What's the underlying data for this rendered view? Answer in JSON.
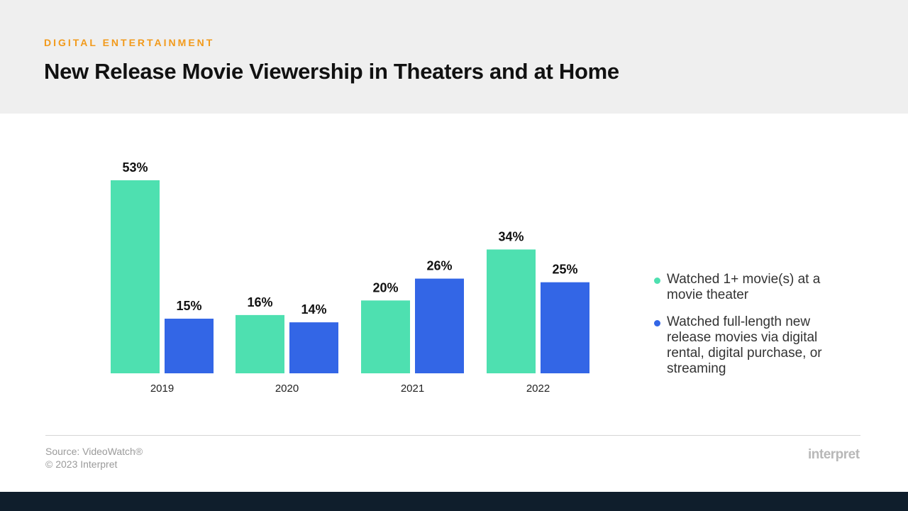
{
  "header": {
    "kicker": "DIGITAL ENTERTAINMENT",
    "title": "New Release Movie Viewership in Theaters and at Home"
  },
  "chart_data": {
    "type": "bar",
    "categories": [
      "2019",
      "2020",
      "2021",
      "2022"
    ],
    "series": [
      {
        "name": "Watched 1+ movie(s) at a movie theater",
        "values": [
          53,
          16,
          20,
          34
        ],
        "labels": [
          "53%",
          "16%",
          "20%",
          "34%"
        ],
        "color": "#4ee0b0"
      },
      {
        "name": "Watched full-length new release movies via digital rental, digital purchase, or streaming",
        "values": [
          15,
          14,
          26,
          25
        ],
        "labels": [
          "15%",
          "14%",
          "26%",
          "25%"
        ],
        "color": "#3366e6"
      }
    ],
    "ylim": [
      0,
      60
    ],
    "grid": false,
    "legend": "right"
  },
  "legend": {
    "items": [
      {
        "text": "Watched 1+ movie(s) at a movie theater",
        "color": "#4ee0b0"
      },
      {
        "text": "Watched full-length new release movies via digital rental, digital purchase, or streaming",
        "color": "#3366e6"
      }
    ]
  },
  "footer": {
    "source": "Source: VideoWatch®",
    "copyright": "© 2023 Interpret",
    "brand": "interpret"
  }
}
